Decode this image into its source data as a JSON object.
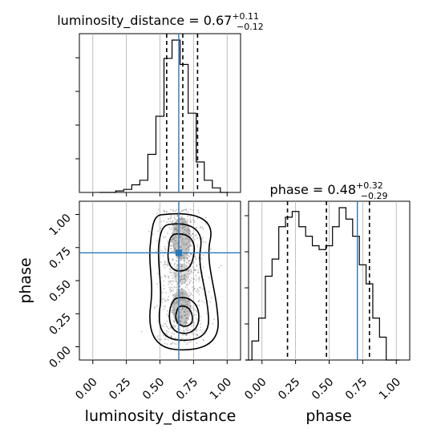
{
  "chart_data": [
    {
      "type": "histogram",
      "panel": "top-left",
      "title_param": "luminosity_distance",
      "title_value": "0.67",
      "title_plus": "+0.11",
      "title_minus": "−0.12",
      "x": [
        0.08,
        0.14,
        0.2,
        0.26,
        0.32,
        0.38,
        0.44,
        0.5,
        0.56,
        0.62,
        0.68,
        0.74,
        0.8,
        0.86,
        0.92,
        0.98
      ],
      "counts": [
        0,
        0,
        1,
        2,
        5,
        8,
        25,
        50,
        88,
        100,
        84,
        52,
        20,
        8,
        3,
        0
      ],
      "quantiles": [
        0.55,
        0.67,
        0.78
      ],
      "truth": 0.64,
      "xlim": [
        -0.1,
        1.1
      ],
      "grid": true
    },
    {
      "type": "scatter",
      "panel": "bottom-left",
      "xlabel": "luminosity_distance",
      "ylabel": "phase",
      "xlim": [
        -0.1,
        1.1
      ],
      "ylim": [
        -0.1,
        1.1
      ],
      "x_ticks": [
        "0.00",
        "0.25",
        "0.50",
        "0.75",
        "1.00"
      ],
      "y_ticks": [
        "0.00",
        "0.25",
        "0.50",
        "0.75",
        "1.00"
      ],
      "truth": [
        0.64,
        0.71
      ],
      "grid": true
    },
    {
      "type": "histogram",
      "panel": "bottom-right",
      "xlabel": "phase",
      "title_param": "phase",
      "title_value": "0.48",
      "title_plus": "+0.32",
      "title_minus": "−0.29",
      "x": [
        -0.1,
        -0.05,
        0.0,
        0.05,
        0.1,
        0.15,
        0.2,
        0.25,
        0.3,
        0.35,
        0.4,
        0.45,
        0.5,
        0.55,
        0.6,
        0.65,
        0.7,
        0.75,
        0.8,
        0.85,
        0.9,
        0.95,
        1.0
      ],
      "counts": [
        0,
        10,
        22,
        44,
        53,
        70,
        75,
        78,
        70,
        65,
        60,
        58,
        60,
        70,
        80,
        74,
        65,
        50,
        40,
        22,
        12,
        0,
        0
      ],
      "quantiles": [
        0.19,
        0.48,
        0.8
      ],
      "truth": 0.71,
      "xlim": [
        -0.1,
        1.1
      ],
      "x_ticks": [
        "0.00",
        "0.25",
        "0.50",
        "0.75",
        "1.00"
      ],
      "grid": true
    }
  ],
  "colors": {
    "truth": "#2a7ab9",
    "hist": "#000000",
    "grid": "#b0b0b0"
  }
}
